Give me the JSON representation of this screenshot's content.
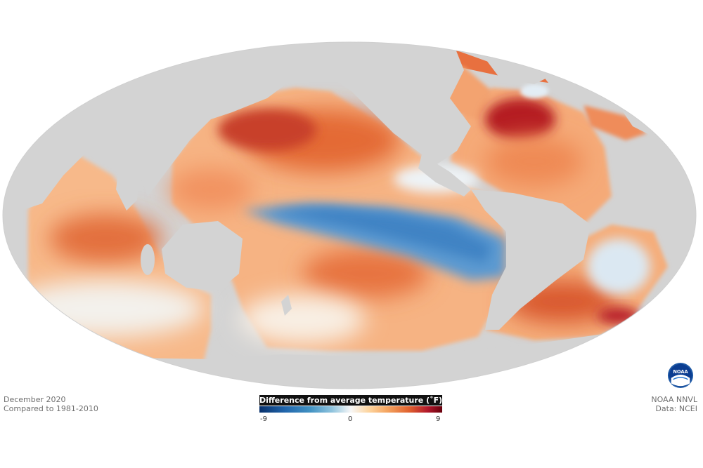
{
  "info_left": {
    "line1": "December 2020",
    "line2": "Compared to 1981-2010"
  },
  "info_right": {
    "line1": "NOAA NNVL",
    "line2": "Data: NCEI"
  },
  "legend": {
    "title": "Difference from average temperature (˚F)",
    "min": "-9",
    "mid": "0",
    "max": "9"
  },
  "logo": {
    "text": "NOAA",
    "icon": "noaa-logo-icon"
  },
  "colors": {
    "land": "#d3d3d3",
    "cold": "#2166ac",
    "neutral": "#f7f7f7",
    "warm": "#e0612f",
    "hot": "#67000d"
  }
}
